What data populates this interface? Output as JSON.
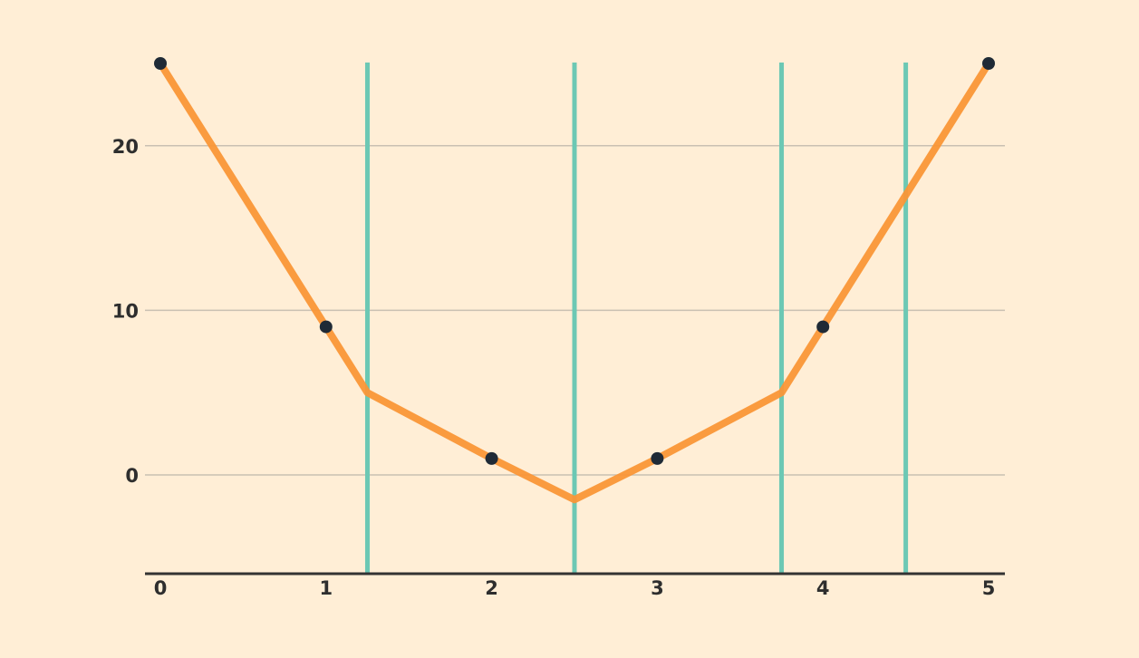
{
  "colors": {
    "background": "#ffeed6",
    "line": "#fa9637",
    "points": "#1f2a36",
    "vertical_lines": "#6cc8b4",
    "gridlines": "#c9c0b2",
    "axis": "#333333",
    "text": "#2e2e2e"
  },
  "chart_data": {
    "type": "line",
    "title": "",
    "xlabel": "",
    "ylabel": "",
    "xlim": [
      0,
      5
    ],
    "ylim": [
      -6,
      25
    ],
    "grid": "horizontal",
    "x_ticks": [
      0,
      1,
      2,
      3,
      4,
      5
    ],
    "y_ticks": [
      0,
      10,
      20
    ],
    "x_tick_labels": [
      "0",
      "1",
      "2",
      "3",
      "4",
      "5"
    ],
    "y_tick_labels": [
      "0",
      "10",
      "20"
    ],
    "series": [
      {
        "x": [
          0,
          1,
          1.25,
          2,
          2.5,
          3,
          3.75,
          4,
          5
        ],
        "y": [
          25,
          9,
          5,
          1,
          -1.5,
          1,
          5,
          9,
          25
        ]
      }
    ],
    "markers": [
      {
        "x": 0,
        "y": 25
      },
      {
        "x": 1,
        "y": 9
      },
      {
        "x": 2,
        "y": 1
      },
      {
        "x": 3,
        "y": 1
      },
      {
        "x": 4,
        "y": 9
      },
      {
        "x": 5,
        "y": 25
      }
    ],
    "vertical_lines": [
      1.25,
      2.5,
      3.75,
      4.5
    ]
  }
}
